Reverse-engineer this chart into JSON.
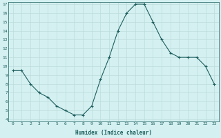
{
  "x": [
    0,
    1,
    2,
    3,
    4,
    5,
    6,
    7,
    8,
    9,
    10,
    11,
    12,
    13,
    14,
    15,
    16,
    17,
    18,
    19,
    20,
    21,
    22,
    23
  ],
  "y": [
    9.5,
    9.5,
    8.0,
    7.0,
    6.5,
    5.5,
    5.0,
    4.5,
    4.5,
    5.5,
    8.5,
    11.0,
    14.0,
    16.0,
    17.0,
    17.0,
    15.0,
    13.0,
    11.5,
    11.0,
    11.0,
    11.0,
    10.0,
    8.0
  ],
  "ylim": [
    4,
    17
  ],
  "xlim": [
    -0.5,
    23.5
  ],
  "xlabel": "Humidex (Indice chaleur)",
  "line_color": "#1e5e5e",
  "marker": "+",
  "bg_color": "#d4f0f0",
  "grid_color": "#b8d8d8",
  "yticks": [
    4,
    5,
    6,
    7,
    8,
    9,
    10,
    11,
    12,
    13,
    14,
    15,
    16,
    17
  ],
  "xticks": [
    0,
    1,
    2,
    3,
    4,
    5,
    6,
    7,
    8,
    9,
    10,
    11,
    12,
    13,
    14,
    15,
    16,
    17,
    18,
    19,
    20,
    21,
    22,
    23
  ]
}
